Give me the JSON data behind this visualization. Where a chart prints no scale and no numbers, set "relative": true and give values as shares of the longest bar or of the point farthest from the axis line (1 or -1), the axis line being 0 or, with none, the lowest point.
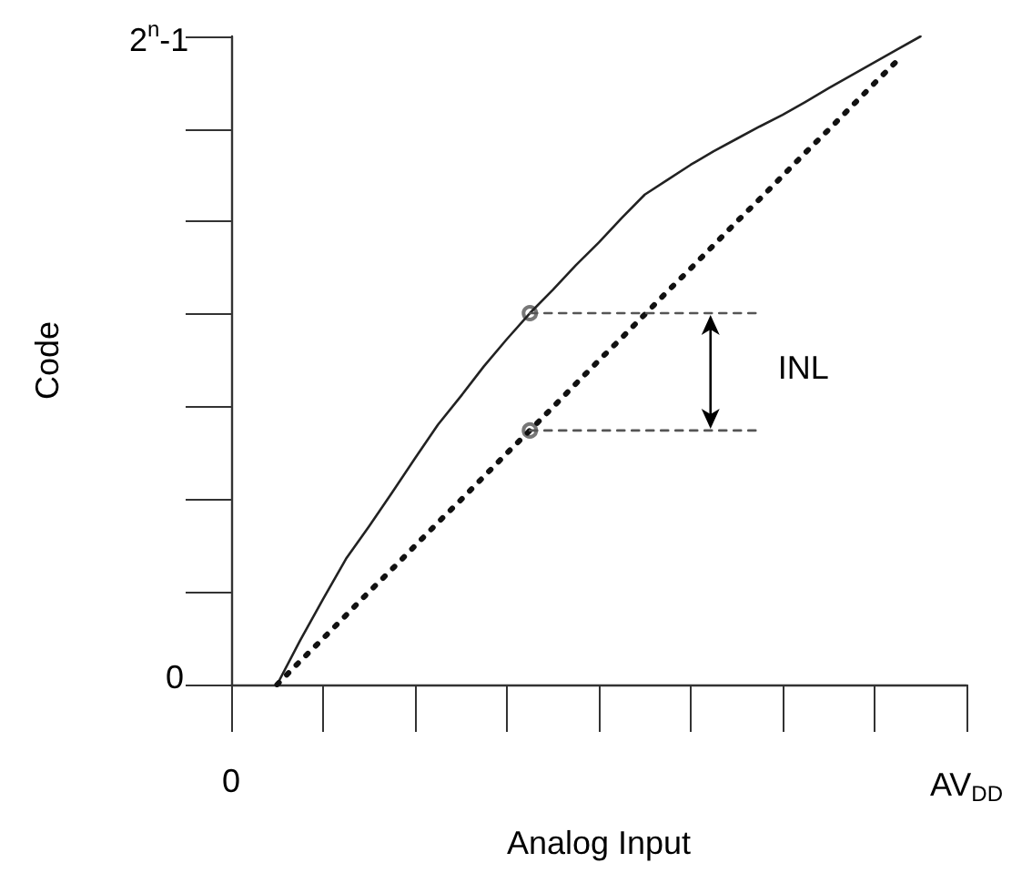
{
  "chart_data": {
    "type": "line",
    "relative": true,
    "xlabel": "Analog Input",
    "ylabel": "Code",
    "grid": false,
    "marker": "none",
    "categories": [
      "0",
      null,
      null,
      null,
      null,
      null,
      null,
      null,
      null,
      null,
      null,
      null,
      null,
      null,
      null,
      null,
      null,
      null,
      null,
      null,
      null,
      null,
      null,
      null,
      null,
      null,
      null,
      null,
      null,
      null,
      null,
      null,
      "AV$_{DD}$"
    ],
    "series": [
      {
        "color": "#222222",
        "line_style": "solid",
        "values": [
          null,
          null,
          0,
          0.068,
          0.132,
          0.194,
          0.244,
          0.296,
          0.349,
          0.401,
          0.445,
          0.491,
          0.533,
          0.573,
          0.609,
          0.647,
          0.682,
          0.72,
          0.756,
          0.779,
          0.802,
          0.823,
          0.842,
          0.861,
          0.879,
          0.899,
          0.92,
          0.94,
          0.96,
          0.98,
          1,
          null,
          null
        ]
      },
      {
        "color": "#111111",
        "line_style": "dotted",
        "values": [
          null,
          null,
          0,
          0.036,
          0.071,
          0.107,
          0.143,
          0.178,
          0.214,
          0.25,
          0.285,
          0.321,
          0.357,
          0.392,
          0.428,
          0.464,
          0.5,
          0.535,
          0.571,
          0.607,
          0.642,
          0.678,
          0.714,
          0.749,
          0.785,
          0.821,
          0.856,
          0.892,
          0.928,
          0.963,
          null,
          null,
          null
        ]
      },
      {
        "color": "#555555",
        "line_style": "dashed",
        "values": [
          null,
          null,
          null,
          null,
          null,
          null,
          null,
          null,
          null,
          null,
          null,
          null,
          null,
          0.573,
          0.573,
          0.573,
          0.573,
          0.573,
          0.573,
          0.573,
          0.573,
          0.573,
          0.573,
          0.573,
          null,
          null,
          null,
          null,
          null,
          null,
          null,
          null,
          null
        ]
      },
      {
        "color": "#555555",
        "line_style": "dashed",
        "values": [
          null,
          null,
          null,
          null,
          null,
          null,
          null,
          null,
          null,
          null,
          null,
          null,
          null,
          0.392,
          0.392,
          0.392,
          0.392,
          0.392,
          0.392,
          0.392,
          0.392,
          0.392,
          0.392,
          0.392,
          null,
          null,
          null,
          null,
          null,
          null,
          null,
          null,
          null
        ]
      },
      {
        "type": "scatter",
        "color": "#555555",
        "marker": "circle",
        "values": [
          null,
          null,
          null,
          null,
          null,
          null,
          null,
          null,
          null,
          null,
          null,
          null,
          null,
          0.573,
          null,
          null,
          null,
          null,
          null,
          null,
          null,
          null,
          null,
          null,
          null,
          null,
          null,
          null,
          null,
          null,
          null,
          null,
          null
        ]
      },
      {
        "type": "scatter",
        "color": "#555555",
        "marker": "circle",
        "values": [
          null,
          null,
          null,
          null,
          null,
          null,
          null,
          null,
          null,
          null,
          null,
          null,
          null,
          0.392,
          null,
          null,
          null,
          null,
          null,
          null,
          null,
          null,
          null,
          null,
          null,
          null,
          null,
          null,
          null,
          null,
          null,
          null,
          null
        ]
      }
    ],
    "annotations": [
      "0",
      "2$^{n}$-1",
      "INL"
    ]
  }
}
